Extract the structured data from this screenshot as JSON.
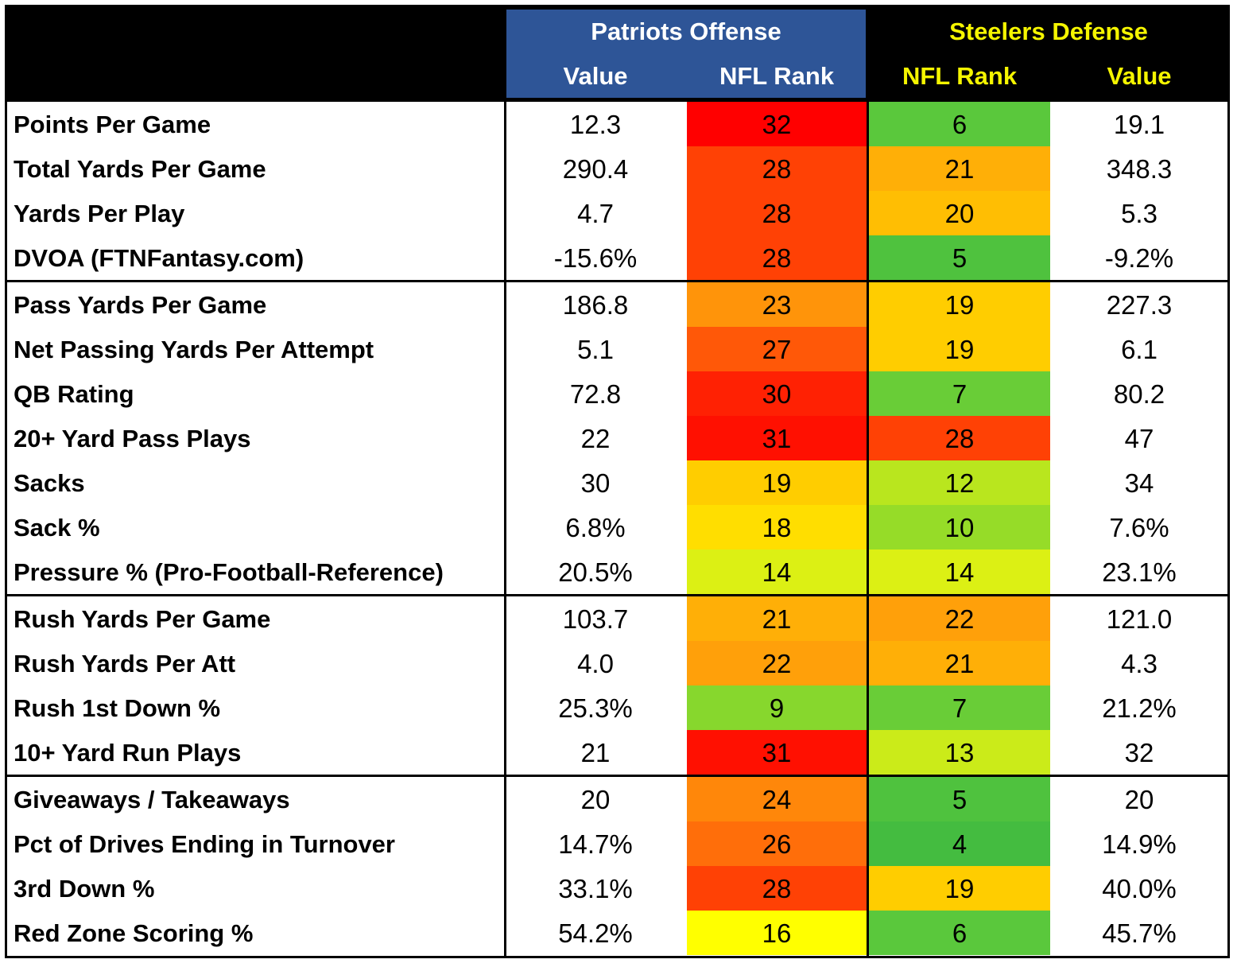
{
  "header": {
    "offense_title": "Patriots Offense",
    "defense_title": "Steelers Defense",
    "offense_value": "Value",
    "offense_rank": "NFL Rank",
    "defense_rank": "NFL Rank",
    "defense_value": "Value"
  },
  "colors": {
    "header_bg": "#000000",
    "offense_header_bg": "#2e5597",
    "defense_header_text": "#f5f500"
  },
  "groups": [
    [
      {
        "label": "Points Per Game",
        "off_value": "12.3",
        "off_rank": "32",
        "def_rank": "6",
        "def_value": "19.1"
      },
      {
        "label": "Total Yards Per Game",
        "off_value": "290.4",
        "off_rank": "28",
        "def_rank": "21",
        "def_value": "348.3"
      },
      {
        "label": "Yards Per Play",
        "off_value": "4.7",
        "off_rank": "28",
        "def_rank": "20",
        "def_value": "5.3"
      },
      {
        "label": "DVOA (FTNFantasy.com)",
        "off_value": "-15.6%",
        "off_rank": "28",
        "def_rank": "5",
        "def_value": "-9.2%"
      }
    ],
    [
      {
        "label": "Pass Yards Per Game",
        "off_value": "186.8",
        "off_rank": "23",
        "def_rank": "19",
        "def_value": "227.3"
      },
      {
        "label": "Net Passing Yards Per Attempt",
        "off_value": "5.1",
        "off_rank": "27",
        "def_rank": "19",
        "def_value": "6.1"
      },
      {
        "label": "QB Rating",
        "off_value": "72.8",
        "off_rank": "30",
        "def_rank": "7",
        "def_value": "80.2"
      },
      {
        "label": "20+ Yard Pass Plays",
        "off_value": "22",
        "off_rank": "31",
        "def_rank": "28",
        "def_value": "47"
      },
      {
        "label": "Sacks",
        "off_value": "30",
        "off_rank": "19",
        "def_rank": "12",
        "def_value": "34"
      },
      {
        "label": "Sack %",
        "off_value": "6.8%",
        "off_rank": "18",
        "def_rank": "10",
        "def_value": "7.6%"
      },
      {
        "label": "Pressure % (Pro-Football-Reference)",
        "off_value": "20.5%",
        "off_rank": "14",
        "def_rank": "14",
        "def_value": "23.1%"
      }
    ],
    [
      {
        "label": "Rush Yards Per Game",
        "off_value": "103.7",
        "off_rank": "21",
        "def_rank": "22",
        "def_value": "121.0"
      },
      {
        "label": "Rush Yards Per Att",
        "off_value": "4.0",
        "off_rank": "22",
        "def_rank": "21",
        "def_value": "4.3"
      },
      {
        "label": "Rush 1st Down %",
        "off_value": "25.3%",
        "off_rank": "9",
        "def_rank": "7",
        "def_value": "21.2%"
      },
      {
        "label": "10+ Yard Run Plays",
        "off_value": "21",
        "off_rank": "31",
        "def_rank": "13",
        "def_value": "32"
      }
    ],
    [
      {
        "label": "Giveaways / Takeaways",
        "off_value": "20",
        "off_rank": "24",
        "def_rank": "5",
        "def_value": "20"
      },
      {
        "label": "Pct of Drives Ending in Turnover",
        "off_value": "14.7%",
        "off_rank": "26",
        "def_rank": "4",
        "def_value": "14.9%"
      },
      {
        "label": "3rd Down %",
        "off_value": "33.1%",
        "off_rank": "28",
        "def_rank": "19",
        "def_value": "40.0%"
      },
      {
        "label": "Red Zone Scoring %",
        "off_value": "54.2%",
        "off_rank": "16",
        "def_rank": "6",
        "def_value": "45.7%"
      }
    ]
  ]
}
